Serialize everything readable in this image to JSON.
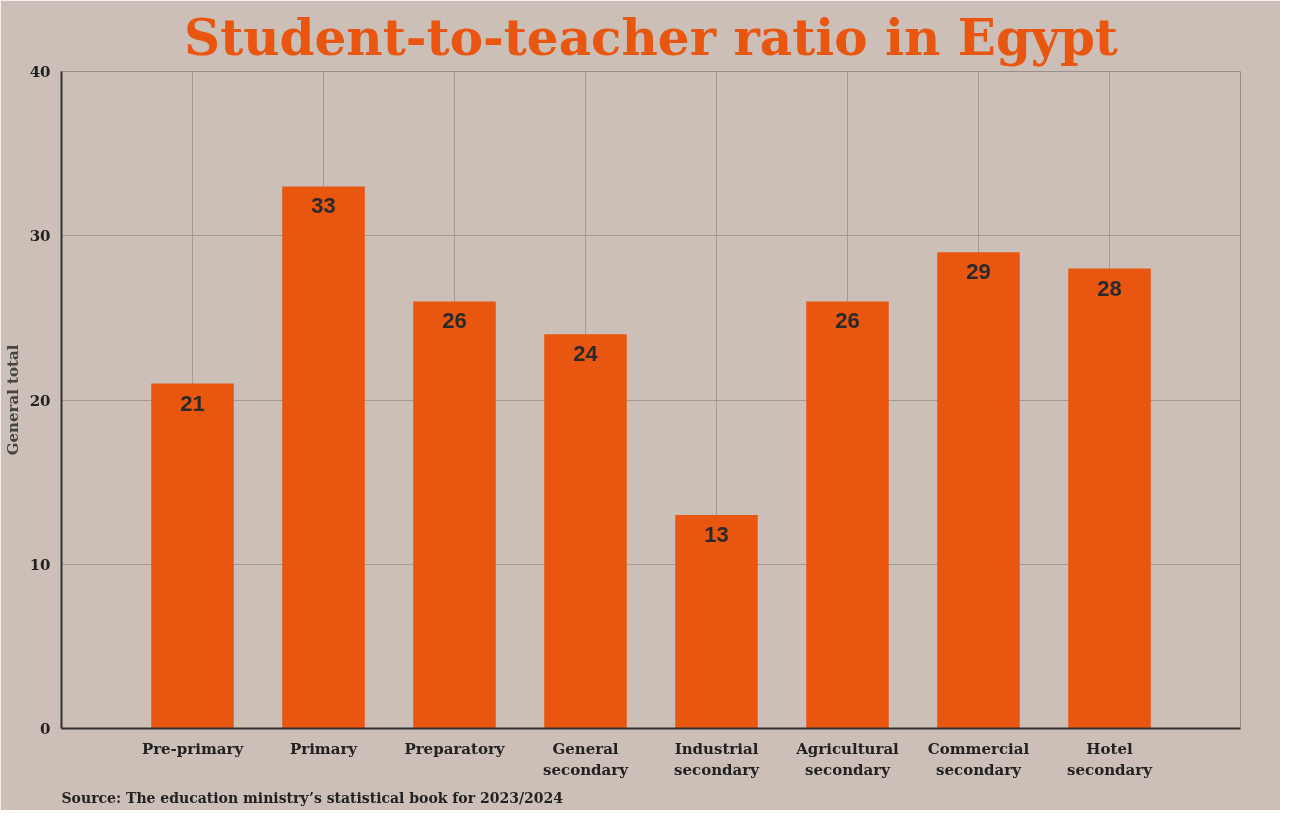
{
  "chart_data": {
    "type": "bar",
    "title": "Student-to-teacher ratio in Egypt",
    "ylabel": "General total",
    "categories": [
      "Pre-primary",
      "Primary",
      "Preparatory",
      "General secondary",
      "Industrial secondary",
      "Agricultural secondary",
      "Commercial secondary",
      "Hotel secondary"
    ],
    "values": [
      21,
      33,
      26,
      24,
      13,
      26,
      29,
      28
    ],
    "color": "#e8560f",
    "ylim": [
      0,
      40
    ],
    "yticks": [
      0,
      10,
      20,
      30,
      40
    ],
    "grid": true,
    "data_labels": true,
    "annotations": [
      "Source: The education ministry’s statistical book for 2023/2024"
    ]
  }
}
